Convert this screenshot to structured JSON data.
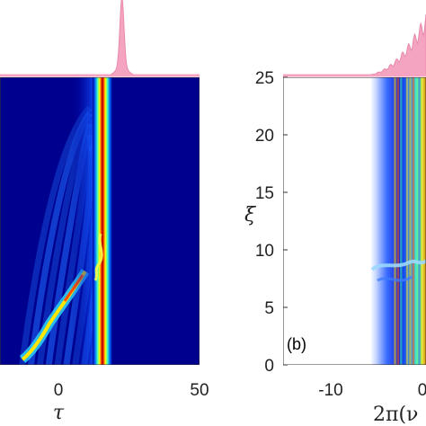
{
  "chart_data": [
    {
      "type": "heatmap",
      "panel": "left",
      "xlabel": "τ",
      "xticks": [
        0,
        50
      ],
      "xtick_labels": [
        "0",
        "50"
      ],
      "xlim": [
        -40,
        50
      ],
      "ylim": [
        0,
        25
      ],
      "colormap": "jet",
      "profile_color": "#f4a3c0",
      "features": {
        "main_stripe_center_tau": 15,
        "soliton_emission_near_xi": 8,
        "dispersive_wave_branch": [
          [
            0,
            4
          ],
          [
            -5,
            2
          ],
          [
            -12,
            1
          ],
          [
            -25,
            0.5
          ]
        ]
      }
    },
    {
      "type": "heatmap",
      "panel": "right",
      "label": "(b)",
      "ylabel": "ξ",
      "xlabel": "2π(ν",
      "yticks": [
        0,
        5,
        10,
        15,
        20,
        25
      ],
      "ytick_labels": [
        "0",
        "5",
        "10",
        "15",
        "20",
        "25"
      ],
      "xticks": [
        -10,
        0
      ],
      "xtick_labels": [
        "-10",
        "0"
      ],
      "xlim": [
        -15,
        1.5
      ],
      "ylim": [
        0,
        25
      ],
      "colormap": "jet",
      "profile_color": "#f4a3c0",
      "features": {
        "spectrum_edge_x": -5.5,
        "perturbation_near_xi": 8
      }
    }
  ]
}
